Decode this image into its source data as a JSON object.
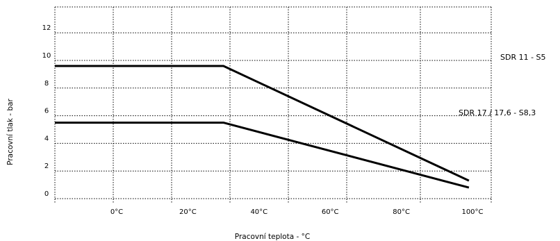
{
  "chart_data": {
    "type": "line",
    "title": "",
    "xlabel": "Pracovní teplota - °C",
    "ylabel": "Pracovní tlak - bar",
    "x_ticks": [
      "0°C",
      "20°C",
      "40°C",
      "60°C",
      "80°C",
      "100°C"
    ],
    "x_tick_values": [
      0,
      20,
      40,
      60,
      80,
      100
    ],
    "y_ticks": [
      "0",
      "2",
      "4",
      "6",
      "8",
      "10",
      "12"
    ],
    "y_tick_values": [
      0,
      2,
      4,
      6,
      8,
      10,
      12
    ],
    "xlim": [
      -20,
      105
    ],
    "ylim": [
      -0.3,
      13.5
    ],
    "grid": true,
    "grid_style": "dotted",
    "series": [
      {
        "name": "SDR 11 - S5",
        "x": [
          -20,
          30,
          99
        ],
        "y": [
          9.6,
          9.6,
          1.3
        ]
      },
      {
        "name": "SDR 17 / 17,6 - S8,3",
        "x": [
          -20,
          30,
          99
        ],
        "y": [
          5.5,
          5.5,
          0.8
        ]
      }
    ]
  }
}
